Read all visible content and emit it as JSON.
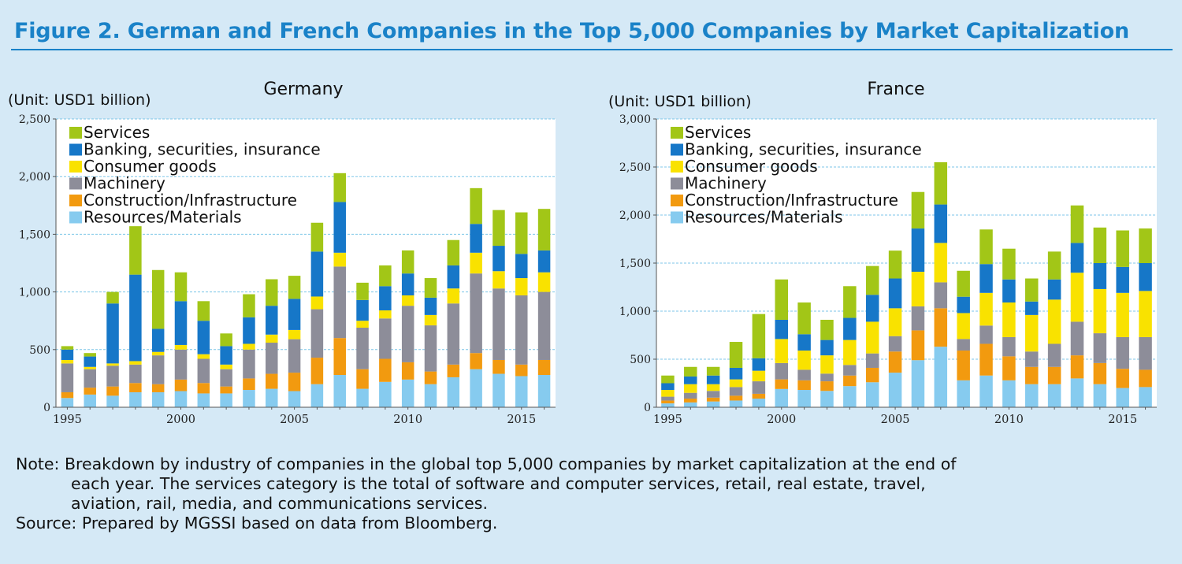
{
  "title": "Figure 2. German and French Companies in the Top 5,000 Companies by Market Capitalization",
  "colors": {
    "Services": "#a2c617",
    "Banking, securities, insurance": "#1677c8",
    "Consumer goods": "#f9e200",
    "Machinery": "#8d8d99",
    "Construction/Infrastructure": "#f29a0f",
    "Resources/Materials": "#86cbef"
  },
  "chart_data": [
    {
      "type": "bar",
      "stacked": true,
      "title": "Germany",
      "unit_label": "(Unit: USD1 billion)",
      "ylim": [
        0,
        2500
      ],
      "yticks": [
        "0",
        "500",
        "1,000",
        "1,500",
        "2,000",
        "2,500"
      ],
      "ytick_values": [
        0,
        500,
        1000,
        1500,
        2000,
        2500
      ],
      "xtick_labels": [
        "1995",
        "2000",
        "2005",
        "2010",
        "2015"
      ],
      "grid": true,
      "legend": "top-left",
      "categories": [
        1995,
        1996,
        1997,
        1998,
        1999,
        2000,
        2001,
        2002,
        2003,
        2004,
        2005,
        2006,
        2007,
        2008,
        2009,
        2010,
        2011,
        2012,
        2013,
        2014,
        2015,
        2016
      ],
      "series": [
        {
          "name": "Resources/Materials",
          "values": [
            80,
            110,
            100,
            130,
            130,
            140,
            120,
            120,
            150,
            160,
            140,
            200,
            280,
            160,
            220,
            240,
            200,
            260,
            330,
            290,
            270,
            280
          ]
        },
        {
          "name": "Construction/Infrastructure",
          "values": [
            50,
            60,
            80,
            80,
            70,
            100,
            90,
            60,
            100,
            130,
            160,
            230,
            320,
            170,
            200,
            150,
            110,
            110,
            140,
            120,
            100,
            130
          ]
        },
        {
          "name": "Machinery",
          "values": [
            250,
            160,
            180,
            160,
            250,
            260,
            210,
            150,
            250,
            270,
            290,
            420,
            620,
            360,
            350,
            490,
            400,
            530,
            690,
            620,
            600,
            590
          ]
        },
        {
          "name": "Consumer goods",
          "values": [
            30,
            20,
            20,
            30,
            30,
            40,
            40,
            40,
            50,
            70,
            80,
            110,
            120,
            60,
            70,
            90,
            90,
            130,
            180,
            150,
            150,
            170
          ]
        },
        {
          "name": "Banking, securities, insurance",
          "values": [
            90,
            90,
            520,
            750,
            200,
            380,
            290,
            160,
            230,
            250,
            270,
            390,
            440,
            180,
            210,
            190,
            150,
            200,
            250,
            220,
            210,
            190
          ]
        },
        {
          "name": "Services",
          "values": [
            30,
            30,
            100,
            420,
            510,
            250,
            170,
            110,
            200,
            230,
            200,
            250,
            250,
            150,
            180,
            200,
            170,
            220,
            310,
            310,
            360,
            360
          ]
        }
      ]
    },
    {
      "type": "bar",
      "stacked": true,
      "title": "France",
      "unit_label": "(Unit: USD1 billion)",
      "ylim": [
        0,
        3000
      ],
      "yticks": [
        "0",
        "500",
        "1,000",
        "1,500",
        "2,000",
        "2,500",
        "3,000"
      ],
      "ytick_values": [
        0,
        500,
        1000,
        1500,
        2000,
        2500,
        3000
      ],
      "xtick_labels": [
        "1995",
        "2000",
        "2005",
        "2010",
        "2015"
      ],
      "grid": true,
      "legend": "top-left",
      "categories": [
        1995,
        1996,
        1997,
        1998,
        1999,
        2000,
        2001,
        2002,
        2003,
        2004,
        2005,
        2006,
        2007,
        2008,
        2009,
        2010,
        2011,
        2012,
        2013,
        2014,
        2015,
        2016
      ],
      "series": [
        {
          "name": "Resources/Materials",
          "values": [
            40,
            50,
            60,
            70,
            90,
            190,
            180,
            170,
            220,
            260,
            360,
            490,
            630,
            280,
            330,
            280,
            240,
            240,
            300,
            240,
            200,
            210
          ]
        },
        {
          "name": "Construction/Infrastructure",
          "values": [
            30,
            40,
            40,
            50,
            50,
            100,
            100,
            100,
            110,
            150,
            220,
            310,
            400,
            310,
            330,
            250,
            180,
            180,
            240,
            220,
            200,
            180
          ]
        },
        {
          "name": "Machinery",
          "values": [
            40,
            60,
            70,
            90,
            130,
            170,
            110,
            80,
            110,
            150,
            160,
            250,
            270,
            120,
            190,
            200,
            160,
            240,
            350,
            310,
            330,
            340
          ]
        },
        {
          "name": "Consumer goods",
          "values": [
            70,
            90,
            70,
            80,
            110,
            250,
            200,
            190,
            260,
            330,
            290,
            360,
            410,
            270,
            340,
            360,
            380,
            460,
            510,
            460,
            460,
            480
          ]
        },
        {
          "name": "Banking, securities, insurance",
          "values": [
            70,
            80,
            90,
            120,
            130,
            200,
            170,
            160,
            230,
            280,
            310,
            450,
            400,
            170,
            300,
            240,
            140,
            210,
            310,
            270,
            270,
            290
          ]
        },
        {
          "name": "Services",
          "values": [
            80,
            100,
            90,
            270,
            460,
            420,
            330,
            210,
            330,
            300,
            290,
            380,
            440,
            270,
            360,
            320,
            240,
            290,
            390,
            370,
            380,
            360
          ]
        }
      ]
    }
  ],
  "notes": {
    "line1": "Note: Breakdown by industry of companies in the global top 5,000 companies by market capitalization at the end of",
    "line2": "each year. The services category is the total of software and computer services, retail, real estate, travel,",
    "line3": "aviation, rail, media, and communications services.",
    "source": "Source: Prepared by MGSSI based on data from Bloomberg."
  }
}
